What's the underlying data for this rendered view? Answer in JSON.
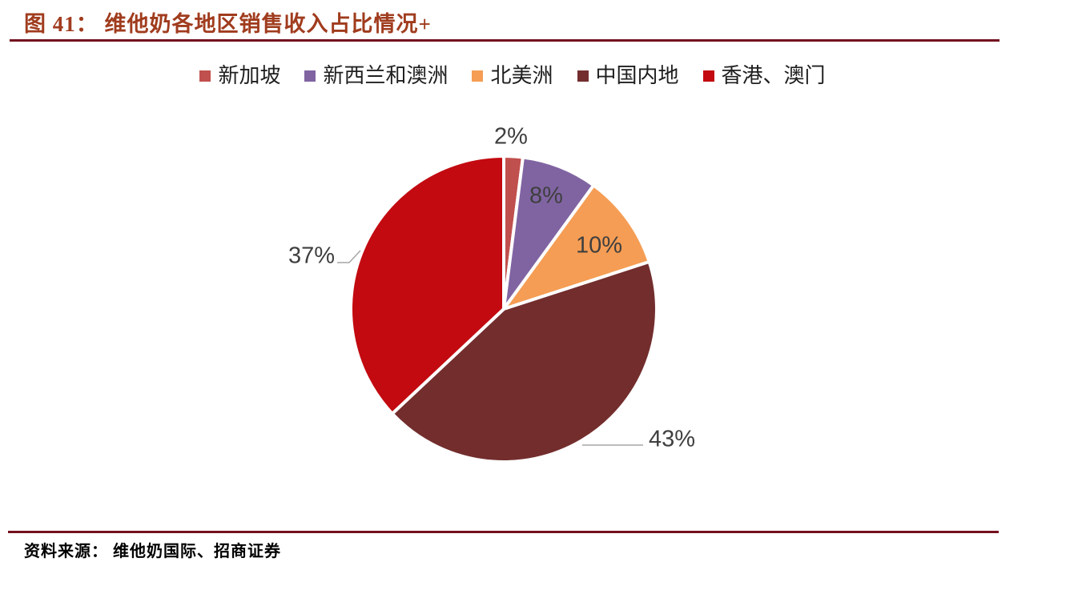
{
  "figure": {
    "title": "图 41： 维他奶各地区销售收入占比情况+",
    "source": "资料来源： 维他奶国际、招商证券"
  },
  "chart_data": {
    "type": "pie",
    "title": "维他奶各地区销售收入占比情况",
    "unit": "percent",
    "start_angle_deg": 0,
    "direction": "clockwise",
    "legend_position": "top",
    "total": 100,
    "slices": [
      {
        "name": "新加坡",
        "value": 2,
        "label": "2%",
        "color": "#C0504D",
        "label_placement": "outside-top"
      },
      {
        "name": "新西兰和澳洲",
        "value": 8,
        "label": "8%",
        "color": "#8064A2",
        "label_placement": "inside"
      },
      {
        "name": "北美洲",
        "value": 10,
        "label": "10%",
        "color": "#F59D54",
        "label_placement": "inside"
      },
      {
        "name": "中国内地",
        "value": 43,
        "label": "43%",
        "color": "#732D2D",
        "label_placement": "outside-right"
      },
      {
        "name": "香港、澳门",
        "value": 37,
        "label": "37%",
        "color": "#C20A10",
        "label_placement": "outside-left"
      }
    ]
  },
  "colors": {
    "background": "#FFFFFF",
    "title": "#A03C1E",
    "rule": "#73111F",
    "label_text": "#3F3F3F",
    "leader_line": "#A6A6A6",
    "legend_text": "#1F1F1F",
    "source_text": "#000000",
    "slice_border": "#FFFFFF"
  }
}
